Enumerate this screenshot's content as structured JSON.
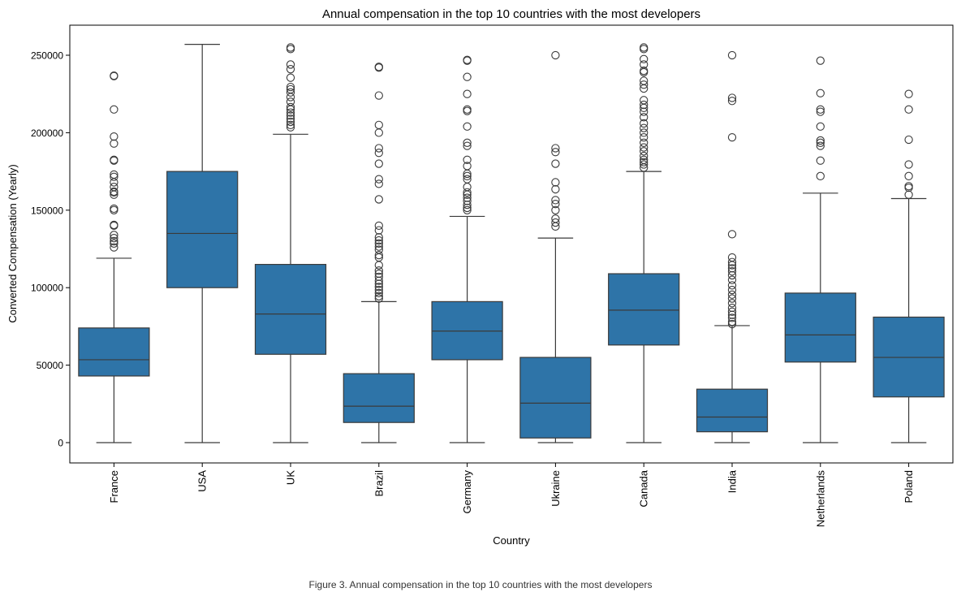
{
  "chart_data": {
    "type": "box",
    "title": "Annual compensation in the top 10 countries with the most developers",
    "xlabel": "Country",
    "ylabel": "Converted Compensation (Yearly)",
    "ylim": [
      -12500,
      270000
    ],
    "yticks": [
      0,
      50000,
      100000,
      150000,
      200000,
      250000
    ],
    "ytick_labels": [
      "0",
      "50000",
      "100000",
      "150000",
      "200000",
      "250000"
    ],
    "grid": false,
    "box_color": "#2e74a8",
    "line_color": "#3a3a3a",
    "categories": [
      "France",
      "USA",
      "UK",
      "Brazil",
      "Germany",
      "Ukraine",
      "Canada",
      "India",
      "Netherlands",
      "Poland"
    ],
    "boxes": [
      {
        "category": "France",
        "whisker_low": 0,
        "q1": 43000,
        "median": 53500,
        "q3": 74000,
        "whisker_high": 119000,
        "outliers": [
          126000,
          128500,
          130000,
          132000,
          134000,
          140000,
          140500,
          150000,
          151000,
          160000,
          161500,
          162000,
          165000,
          168000,
          171500,
          173000,
          182000,
          182500,
          193000,
          197500,
          215000,
          236500,
          236800
        ]
      },
      {
        "category": "USA",
        "whisker_low": 0,
        "q1": 100000,
        "median": 135000,
        "q3": 175000,
        "whisker_high": 257000,
        "outliers": []
      },
      {
        "category": "UK",
        "whisker_low": 0,
        "q1": 57000,
        "median": 83000,
        "q3": 115000,
        "whisker_high": 199000,
        "outliers": [
          203500,
          205000,
          207000,
          209000,
          211000,
          213000,
          215000,
          216500,
          220000,
          223000,
          226000,
          228000,
          229500,
          235500,
          241000,
          244000,
          254000,
          255000
        ]
      },
      {
        "category": "Brazil",
        "whisker_low": 0,
        "q1": 13000,
        "median": 23500,
        "q3": 44500,
        "whisker_high": 91000,
        "outliers": [
          93000,
          94500,
          96500,
          98500,
          100500,
          102500,
          104500,
          107000,
          109000,
          111000,
          114500,
          119500,
          121000,
          124500,
          126500,
          128500,
          130500,
          132500,
          137000,
          140000,
          157000,
          167000,
          170000,
          180000,
          187000,
          190000,
          200000,
          205000,
          224000,
          242000,
          242500
        ]
      },
      {
        "category": "Germany",
        "whisker_low": 0,
        "q1": 53500,
        "median": 72000,
        "q3": 91000,
        "whisker_high": 146000,
        "outliers": [
          150000,
          151500,
          153500,
          156000,
          158000,
          160000,
          161500,
          165000,
          170000,
          172000,
          173500,
          178500,
          182500,
          191500,
          193500,
          204000,
          214000,
          215000,
          225000,
          236000,
          246500,
          247000
        ]
      },
      {
        "category": "Ukraine",
        "whisker_low": 0,
        "q1": 3000,
        "median": 25500,
        "q3": 55000,
        "whisker_high": 132000,
        "outliers": [
          139500,
          142000,
          144500,
          150000,
          154000,
          156500,
          163500,
          168000,
          180000,
          187500,
          190000,
          250000
        ]
      },
      {
        "category": "Canada",
        "whisker_low": 0,
        "q1": 63000,
        "median": 85500,
        "q3": 109000,
        "whisker_high": 175000,
        "outliers": [
          177500,
          179500,
          181000,
          182500,
          185000,
          188000,
          190500,
          193500,
          197000,
          200000,
          203000,
          206000,
          210000,
          213500,
          216000,
          218000,
          221000,
          228500,
          231000,
          233500,
          239000,
          240000,
          244000,
          247500,
          254000,
          255000
        ]
      },
      {
        "category": "India",
        "whisker_low": 0,
        "q1": 7000,
        "median": 16500,
        "q3": 34500,
        "whisker_high": 75500,
        "outliers": [
          76500,
          78000,
          80500,
          82500,
          84500,
          87000,
          90000,
          93000,
          95500,
          98500,
          101500,
          105000,
          108000,
          110500,
          112500,
          114500,
          116500,
          119500,
          134500,
          197000,
          220500,
          222500,
          250000
        ]
      },
      {
        "category": "Netherlands",
        "whisker_low": 0,
        "q1": 52000,
        "median": 69500,
        "q3": 96500,
        "whisker_high": 161000,
        "outliers": [
          172000,
          182000,
          191500,
          193500,
          195000,
          204000,
          213500,
          215000,
          225500,
          246500
        ]
      },
      {
        "category": "Poland",
        "whisker_low": 0,
        "q1": 29500,
        "median": 55000,
        "q3": 81000,
        "whisker_high": 157500,
        "outliers": [
          160000,
          164500,
          165500,
          172000,
          179500,
          195500,
          215000,
          225000
        ]
      }
    ]
  },
  "caption": "Figure 3. Annual compensation in the top 10 countries with the most developers"
}
